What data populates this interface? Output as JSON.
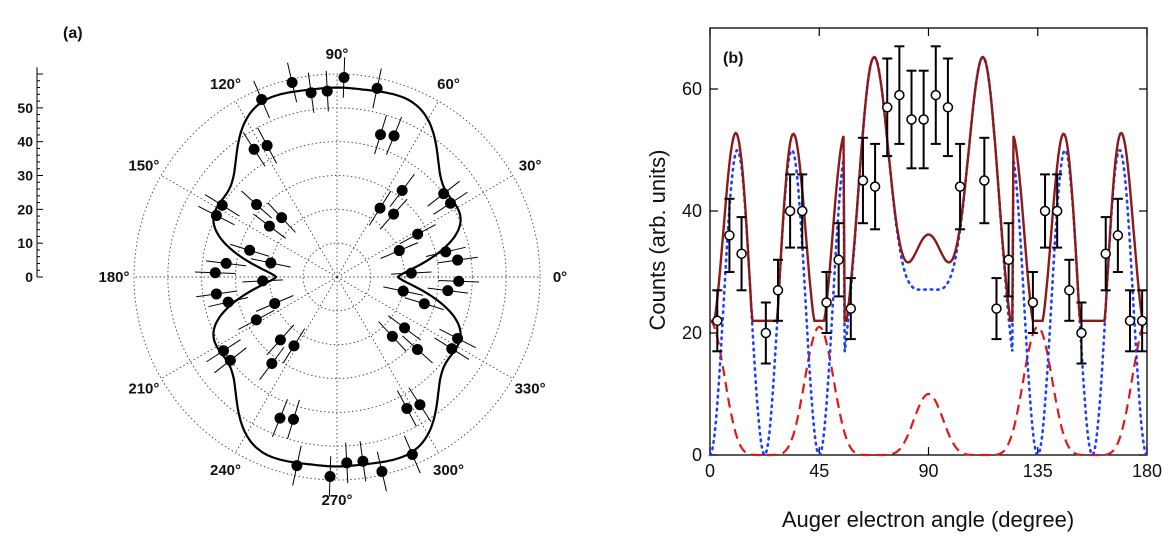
{
  "panels": {
    "a_label": "(a)",
    "b_label": "(b)"
  },
  "colors": {
    "fit": "#8b1a1a",
    "dotted": "#1f3fff",
    "dashed": "#e01818",
    "ink": "#000000"
  },
  "chart_data": [
    {
      "type": "scatter",
      "projection": "polar",
      "panel": "(a)",
      "radial_axis": {
        "ticks": [
          0,
          10,
          20,
          30,
          40,
          50
        ],
        "range": [
          0,
          60
        ]
      },
      "angle_labels": [
        "0°",
        "30°",
        "60°",
        "90°",
        "120°",
        "150°",
        "180°",
        "210°",
        "240°",
        "270°",
        "300°",
        "330°"
      ],
      "angle_ticks_deg": [
        0,
        30,
        60,
        90,
        120,
        150,
        180,
        210,
        240,
        270,
        300,
        330
      ],
      "points": {
        "angle_deg": [
          3,
          8,
          13,
          23,
          28,
          33,
          38,
          48,
          53,
          58,
          68,
          73,
          78,
          88,
          93,
          98,
          103,
          113,
          118,
          123,
          133,
          138,
          143,
          148,
          153,
          163,
          168,
          173,
          178
        ],
        "r": [
          22,
          36,
          33,
          20,
          27,
          40,
          40,
          25,
          32,
          24,
          45,
          44,
          57,
          59,
          55,
          55,
          59,
          57,
          44,
          45,
          24,
          32,
          25,
          40,
          40,
          27,
          20,
          33,
          36
        ]
      },
      "mirror": "four-fold (data reflected into all quadrants)",
      "fit_curve": "solid black",
      "grid": "dotted circles and spokes"
    },
    {
      "type": "line",
      "panel": "(b)",
      "xlabel": "Auger electron angle (degree)",
      "ylabel": "Counts (arb. units)",
      "xlim": [
        0,
        180
      ],
      "ylim": [
        0,
        70
      ],
      "xticks": [
        0,
        45,
        90,
        135,
        180
      ],
      "yticks": [
        0,
        20,
        40,
        60
      ],
      "scatter": {
        "x": [
          3,
          8,
          13,
          23,
          28,
          33,
          38,
          48,
          53,
          58,
          63,
          68,
          73,
          78,
          83,
          88,
          93,
          98,
          103,
          113,
          118,
          123,
          133,
          138,
          143,
          148,
          153,
          163,
          168,
          173,
          178
        ],
        "y": [
          22,
          36,
          33,
          20,
          27,
          40,
          40,
          25,
          32,
          24,
          45,
          44,
          57,
          59,
          55,
          55,
          59,
          57,
          44,
          45,
          24,
          32,
          25,
          40,
          40,
          27,
          20,
          33,
          36,
          22,
          22
        ],
        "err": [
          5,
          6,
          6,
          5,
          5,
          6,
          6,
          5,
          6,
          5,
          7,
          7,
          8,
          8,
          8,
          8,
          8,
          8,
          7,
          7,
          5,
          6,
          5,
          6,
          6,
          5,
          5,
          6,
          6,
          5,
          5
        ]
      },
      "series": [
        {
          "style": "solid",
          "color": "#8b1a1a",
          "peaks_at": [
            12,
            34,
            67,
            113,
            146,
            168
          ],
          "peak_value": 50,
          "center_value": 37,
          "min_value": 22
        },
        {
          "style": "dotted",
          "color": "#1f3fff",
          "peaks_at": [
            12,
            34,
            67,
            113,
            146,
            168
          ],
          "peak_value": 50,
          "center_value": 27,
          "min_value": 0
        },
        {
          "style": "dashed",
          "color": "#e01818",
          "peaks_at": [
            0,
            45,
            90,
            135,
            180
          ],
          "peak_values": [
            22,
            21,
            10,
            21,
            22
          ],
          "min_value": 0
        }
      ],
      "grid": false
    }
  ]
}
